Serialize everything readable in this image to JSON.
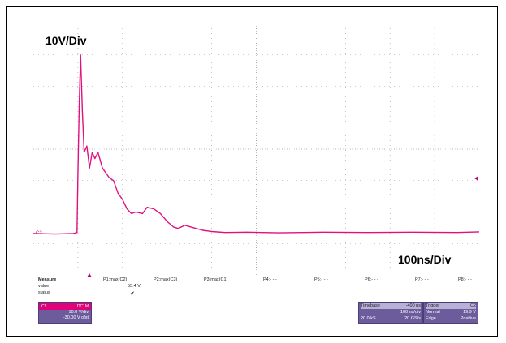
{
  "labels": {
    "volt_div": "10V/Div",
    "time_div": "100ns/Div",
    "channel_marker": "C2"
  },
  "colors": {
    "trace": "#e0107f",
    "grid": "#9a9a9a",
    "panel": "#6c5c9c",
    "channel_tab": "#e0007a"
  },
  "measure": {
    "title": "Measure",
    "row_value": "value",
    "row_status": "status",
    "params": [
      {
        "name": "P1:max(C2)",
        "value": "55.4 V",
        "status": "✔"
      },
      {
        "name": "P2:max(C3)",
        "value": "",
        "status": ""
      },
      {
        "name": "P3:max(C1)",
        "value": "",
        "status": ""
      },
      {
        "name": "P4:- - -",
        "value": "",
        "status": ""
      },
      {
        "name": "P5:- - -",
        "value": "",
        "status": ""
      },
      {
        "name": "P6:- - -",
        "value": "",
        "status": ""
      },
      {
        "name": "P7:- - -",
        "value": "",
        "status": ""
      },
      {
        "name": "P8:- - -",
        "value": "",
        "status": ""
      }
    ]
  },
  "channel": {
    "name": "C2",
    "tag": "DC1M",
    "scale": "10.0 V/div",
    "offset": "-30.00 V ofst"
  },
  "timebase": {
    "title": "Timebase",
    "delay": "-400 ns",
    "scale": "100 ns/div",
    "samples": "20.0 kS",
    "rate": "20 GS/s"
  },
  "trigger": {
    "title": "Trigger",
    "channel": "C2",
    "mode": "Normal",
    "level": "19.9 V",
    "type": "Edge",
    "slope": "Positive"
  },
  "chart_data": {
    "type": "line",
    "xlim": [
      0,
      10
    ],
    "ylim": [
      0,
      8
    ],
    "grid": true,
    "xlabel": "100ns/Div",
    "ylabel": "10V/Div",
    "series": [
      {
        "x": [
          0,
          0.5,
          0.9,
          0.98,
          1.0,
          1.03,
          1.06,
          1.1,
          1.14,
          1.2,
          1.26,
          1.32,
          1.38,
          1.45,
          1.55,
          1.7,
          1.8,
          1.9,
          2.0,
          2.1,
          2.2,
          2.3,
          2.45,
          2.55,
          2.7,
          2.85,
          3.0,
          3.15,
          3.25,
          3.4,
          3.6,
          3.8,
          4.0,
          4.3,
          4.8,
          5.5,
          6.5,
          7.5,
          8.5,
          9.5,
          10
        ],
        "y": [
          1.32,
          1.3,
          1.32,
          1.35,
          3.2,
          5.4,
          7.0,
          5.2,
          3.9,
          4.1,
          3.4,
          3.9,
          3.7,
          3.9,
          3.4,
          3.1,
          3.0,
          2.6,
          2.4,
          2.1,
          1.95,
          2.0,
          1.95,
          2.15,
          2.1,
          1.95,
          1.7,
          1.52,
          1.48,
          1.58,
          1.5,
          1.42,
          1.38,
          1.35,
          1.36,
          1.34,
          1.36,
          1.35,
          1.36,
          1.35,
          1.37
        ]
      }
    ]
  }
}
